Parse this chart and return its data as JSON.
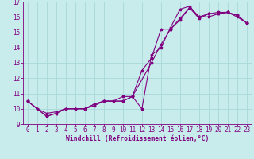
{
  "xlabel": "Windchill (Refroidissement éolien,°C)",
  "background_color": "#c8ecec",
  "line_color": "#800080",
  "grid_color": "#a8d8d8",
  "xlim": [
    -0.5,
    23.5
  ],
  "ylim": [
    9,
    17
  ],
  "xticks": [
    0,
    1,
    2,
    3,
    4,
    5,
    6,
    7,
    8,
    9,
    10,
    11,
    12,
    13,
    14,
    15,
    16,
    17,
    18,
    19,
    20,
    21,
    22,
    23
  ],
  "yticks": [
    9,
    10,
    11,
    12,
    13,
    14,
    15,
    16,
    17
  ],
  "series1_x": [
    0,
    1,
    2,
    3,
    4,
    5,
    6,
    7,
    8,
    9,
    10,
    11,
    12,
    13,
    14,
    15,
    16,
    17,
    18,
    19,
    20,
    21,
    22,
    23
  ],
  "series1_y": [
    10.5,
    10.0,
    9.5,
    9.7,
    10.0,
    10.0,
    10.0,
    10.3,
    10.5,
    10.5,
    10.5,
    10.8,
    12.5,
    13.3,
    15.2,
    15.2,
    15.9,
    16.6,
    15.9,
    16.2,
    16.2,
    16.3,
    16.0,
    15.6
  ],
  "series2_x": [
    0,
    1,
    2,
    3,
    4,
    5,
    6,
    7,
    8,
    9,
    10,
    11,
    12,
    13,
    14,
    15,
    16,
    17,
    18,
    19,
    20,
    21,
    22,
    23
  ],
  "series2_y": [
    10.5,
    10.0,
    9.7,
    9.8,
    10.0,
    10.0,
    10.0,
    10.2,
    10.5,
    10.5,
    10.8,
    10.8,
    10.0,
    13.5,
    14.0,
    15.3,
    16.5,
    16.7,
    16.0,
    16.0,
    16.2,
    16.3,
    16.1,
    15.6
  ],
  "series3_x": [
    0,
    2,
    3,
    4,
    5,
    6,
    7,
    8,
    9,
    10,
    11,
    13,
    14,
    15,
    16,
    17,
    18,
    19,
    20,
    21,
    22,
    23
  ],
  "series3_y": [
    10.5,
    9.5,
    9.7,
    10.0,
    10.0,
    10.0,
    10.3,
    10.5,
    10.5,
    10.5,
    10.8,
    13.0,
    14.2,
    15.2,
    15.8,
    16.6,
    16.0,
    16.2,
    16.3,
    16.3,
    16.1,
    15.6
  ],
  "tick_fontsize": 5.5,
  "xlabel_fontsize": 5.8,
  "marker_size": 2.5,
  "line_width": 0.8
}
